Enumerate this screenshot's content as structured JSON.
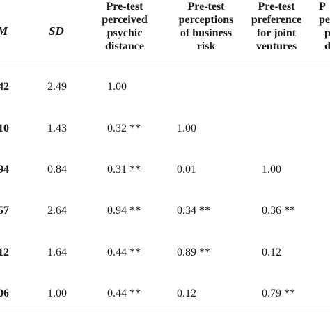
{
  "table": {
    "headers": {
      "m": "M",
      "sd": "SD",
      "col1": [
        "Pre-test",
        "perceived",
        "psychic",
        "distance"
      ],
      "col2": [
        "Pre-test",
        "perceptions",
        "of business",
        "risk"
      ],
      "col3": [
        "Pre-test",
        "preference",
        "for joint",
        "ventures"
      ],
      "col4": [
        "P",
        "pe",
        "p",
        "d"
      ]
    },
    "rows": [
      {
        "m": "42",
        "sd": "2.49",
        "c1": "1.00",
        "c2": "",
        "c3": ""
      },
      {
        "m": "10",
        "sd": "1.43",
        "c1": "0.32 **",
        "c2": "1.00",
        "c3": ""
      },
      {
        "m": "94",
        "sd": "0.84",
        "c1": "0.31 **",
        "c2": "0.01",
        "c3": "1.00"
      },
      {
        "m": "57",
        "sd": "2.64",
        "c1": "0.94 **",
        "c2": "0.34 **",
        "c3": "0.36 **"
      },
      {
        "m": "12",
        "sd": "1.64",
        "c1": "0.44 **",
        "c2": "0.89 **",
        "c3": "0.12"
      },
      {
        "m": "06",
        "sd": "1.00",
        "c1": "0.44 **",
        "c2": "0.12",
        "c3": "0.79 **"
      }
    ]
  }
}
